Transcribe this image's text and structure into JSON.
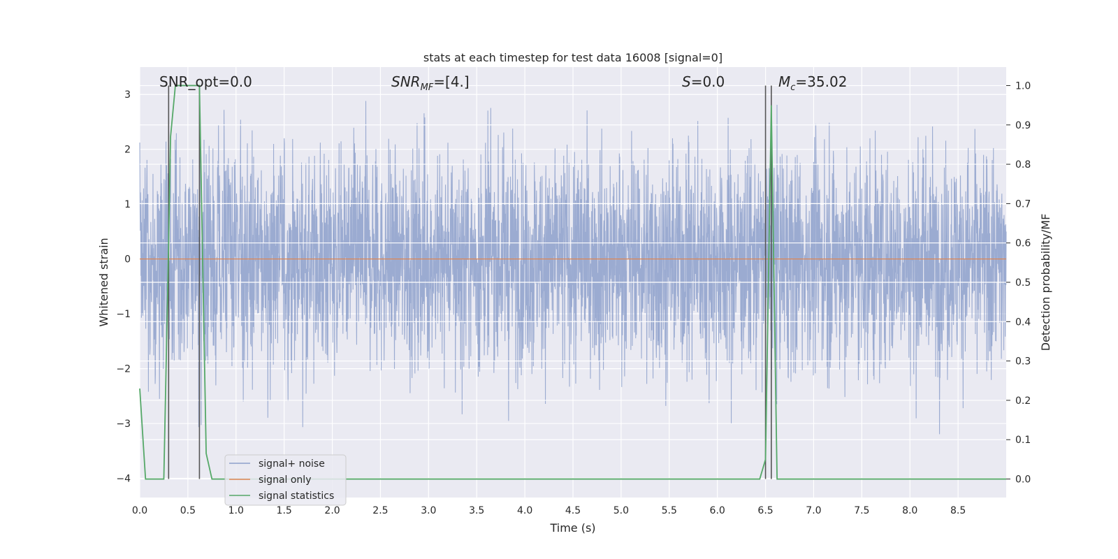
{
  "chart_data": {
    "type": "line",
    "title": "stats at each timestep for test data 16008 [signal=0]",
    "xlabel": "Time (s)",
    "ylabel_left": "Whitened strain",
    "ylabel_right": "Detection probability/MF",
    "xlim": [
      0.0,
      9.0
    ],
    "ylim_left": [
      -4.35,
      3.5
    ],
    "ylim_right": [
      -0.047,
      1.047
    ],
    "x_ticks": [
      "0.0",
      "0.5",
      "1.0",
      "1.5",
      "2.0",
      "2.5",
      "3.0",
      "3.5",
      "4.0",
      "4.5",
      "5.0",
      "5.5",
      "6.0",
      "6.5",
      "7.0",
      "7.5",
      "8.0",
      "8.5"
    ],
    "y_ticks_left": [
      "3",
      "2",
      "1",
      "0",
      "−1",
      "−2",
      "−3",
      "−4"
    ],
    "y_ticks_right": [
      "1.0",
      "0.9",
      "0.8",
      "0.7",
      "0.6",
      "0.5",
      "0.4",
      "0.3",
      "0.2",
      "0.1",
      "0.0"
    ],
    "grid": true,
    "legend_position": "lower-left",
    "annotations": {
      "snr_opt": "SNR_opt=0.0",
      "snr_mf_base": "SNR",
      "snr_mf_sub": "MF",
      "snr_mf_value": "=[4.]",
      "s_label": "S",
      "s_value": "=0.0",
      "mc_base": "M",
      "mc_sub": "c",
      "mc_value": "=35.02"
    },
    "series": [
      {
        "name": "signal+ noise",
        "color": "#8da0cb",
        "note_values": "dense noisy whitened strain, amplitude mostly within about -2 to 2 with spikes reaching about ±3",
        "amplitude_typical": 1.0,
        "amplitude_range": [
          -4.0,
          3.1
        ]
      },
      {
        "name": "signal only",
        "color": "#dd8452",
        "x": [
          0.0,
          9.0
        ],
        "y": [
          0.0,
          0.0
        ]
      },
      {
        "name": "signal statistics",
        "color": "#55a868",
        "axis": "right",
        "x": [
          0.0,
          0.06,
          0.25,
          0.3,
          0.32,
          0.37,
          0.5,
          0.62,
          0.69,
          0.75,
          1.0,
          4.5,
          6.44,
          6.5,
          6.56,
          6.62,
          6.7,
          9.0
        ],
        "y": [
          0.23,
          0.0,
          0.0,
          0.6,
          0.87,
          1.0,
          1.0,
          1.0,
          0.065,
          0.0,
          0.0,
          0.0,
          0.0,
          0.05,
          0.95,
          0.0,
          0.0,
          0.0
        ]
      }
    ],
    "vertical_markers": [
      0.3,
      0.62,
      6.5,
      6.56
    ]
  }
}
